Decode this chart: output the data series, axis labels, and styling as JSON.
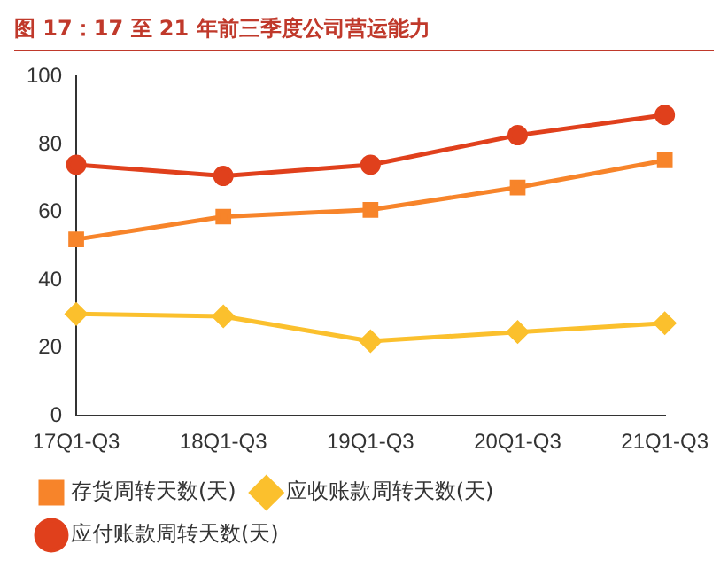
{
  "chart_data": {
    "type": "line",
    "title": "图 17：17 至 21 年前三季度公司营运能力",
    "categories": [
      "17Q1-Q3",
      "18Q1-Q3",
      "19Q1-Q3",
      "20Q1-Q3",
      "21Q1-Q3"
    ],
    "series": [
      {
        "name": "存货周转天数(天)",
        "color": "#f7842a",
        "marker": "square",
        "values": [
          52,
          58.7,
          60.7,
          67.3,
          75.3
        ]
      },
      {
        "name": "应收账款周转天数(天)",
        "color": "#fbc02d",
        "marker": "diamond",
        "values": [
          30,
          29.3,
          22,
          24.7,
          27.3
        ]
      },
      {
        "name": "应付账款周转天数(天)",
        "color": "#e0401c",
        "marker": "circle",
        "values": [
          74,
          70.7,
          74,
          82.7,
          88.7
        ]
      }
    ],
    "ylim": [
      0,
      100
    ],
    "yticks": [
      0,
      20,
      40,
      60,
      80,
      100
    ],
    "grid": false,
    "legend": "bottom"
  }
}
